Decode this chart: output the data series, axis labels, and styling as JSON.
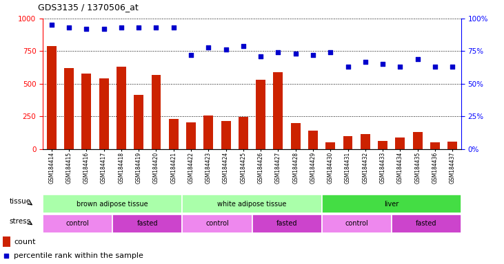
{
  "title": "GDS3135 / 1370506_at",
  "samples": [
    "GSM184414",
    "GSM184415",
    "GSM184416",
    "GSM184417",
    "GSM184418",
    "GSM184419",
    "GSM184420",
    "GSM184421",
    "GSM184422",
    "GSM184423",
    "GSM184424",
    "GSM184425",
    "GSM184426",
    "GSM184427",
    "GSM184428",
    "GSM184429",
    "GSM184430",
    "GSM184431",
    "GSM184432",
    "GSM184433",
    "GSM184434",
    "GSM184435",
    "GSM184436",
    "GSM184437"
  ],
  "counts": [
    790,
    620,
    580,
    540,
    630,
    415,
    570,
    230,
    205,
    260,
    215,
    245,
    530,
    590,
    200,
    140,
    55,
    100,
    115,
    65,
    90,
    130,
    55,
    60
  ],
  "percentiles": [
    95,
    93,
    92,
    92,
    93,
    93,
    93,
    93,
    72,
    78,
    76,
    79,
    71,
    74,
    73,
    72,
    74,
    63,
    67,
    65,
    63,
    69,
    63,
    63
  ],
  "tissue_groups": [
    {
      "label": "brown adipose tissue",
      "start": 0,
      "end": 7,
      "color": "#aaffaa"
    },
    {
      "label": "white adipose tissue",
      "start": 8,
      "end": 15,
      "color": "#aaffaa"
    },
    {
      "label": "liver",
      "start": 16,
      "end": 23,
      "color": "#44dd44"
    }
  ],
  "stress_groups": [
    {
      "label": "control",
      "start": 0,
      "end": 3,
      "color": "#ee88ee"
    },
    {
      "label": "fasted",
      "start": 4,
      "end": 7,
      "color": "#cc44cc"
    },
    {
      "label": "control",
      "start": 8,
      "end": 11,
      "color": "#ee88ee"
    },
    {
      "label": "fasted",
      "start": 12,
      "end": 15,
      "color": "#cc44cc"
    },
    {
      "label": "control",
      "start": 16,
      "end": 19,
      "color": "#ee88ee"
    },
    {
      "label": "fasted",
      "start": 20,
      "end": 23,
      "color": "#cc44cc"
    }
  ],
  "bar_color": "#CC2200",
  "dot_color": "#0000CC",
  "left_ylim": [
    0,
    1000
  ],
  "right_ylim": [
    0,
    100
  ],
  "left_yticks": [
    0,
    250,
    500,
    750,
    1000
  ],
  "right_yticks": [
    0,
    25,
    50,
    75,
    100
  ],
  "plot_bg": "#ffffff",
  "fig_bg": "#ffffff"
}
